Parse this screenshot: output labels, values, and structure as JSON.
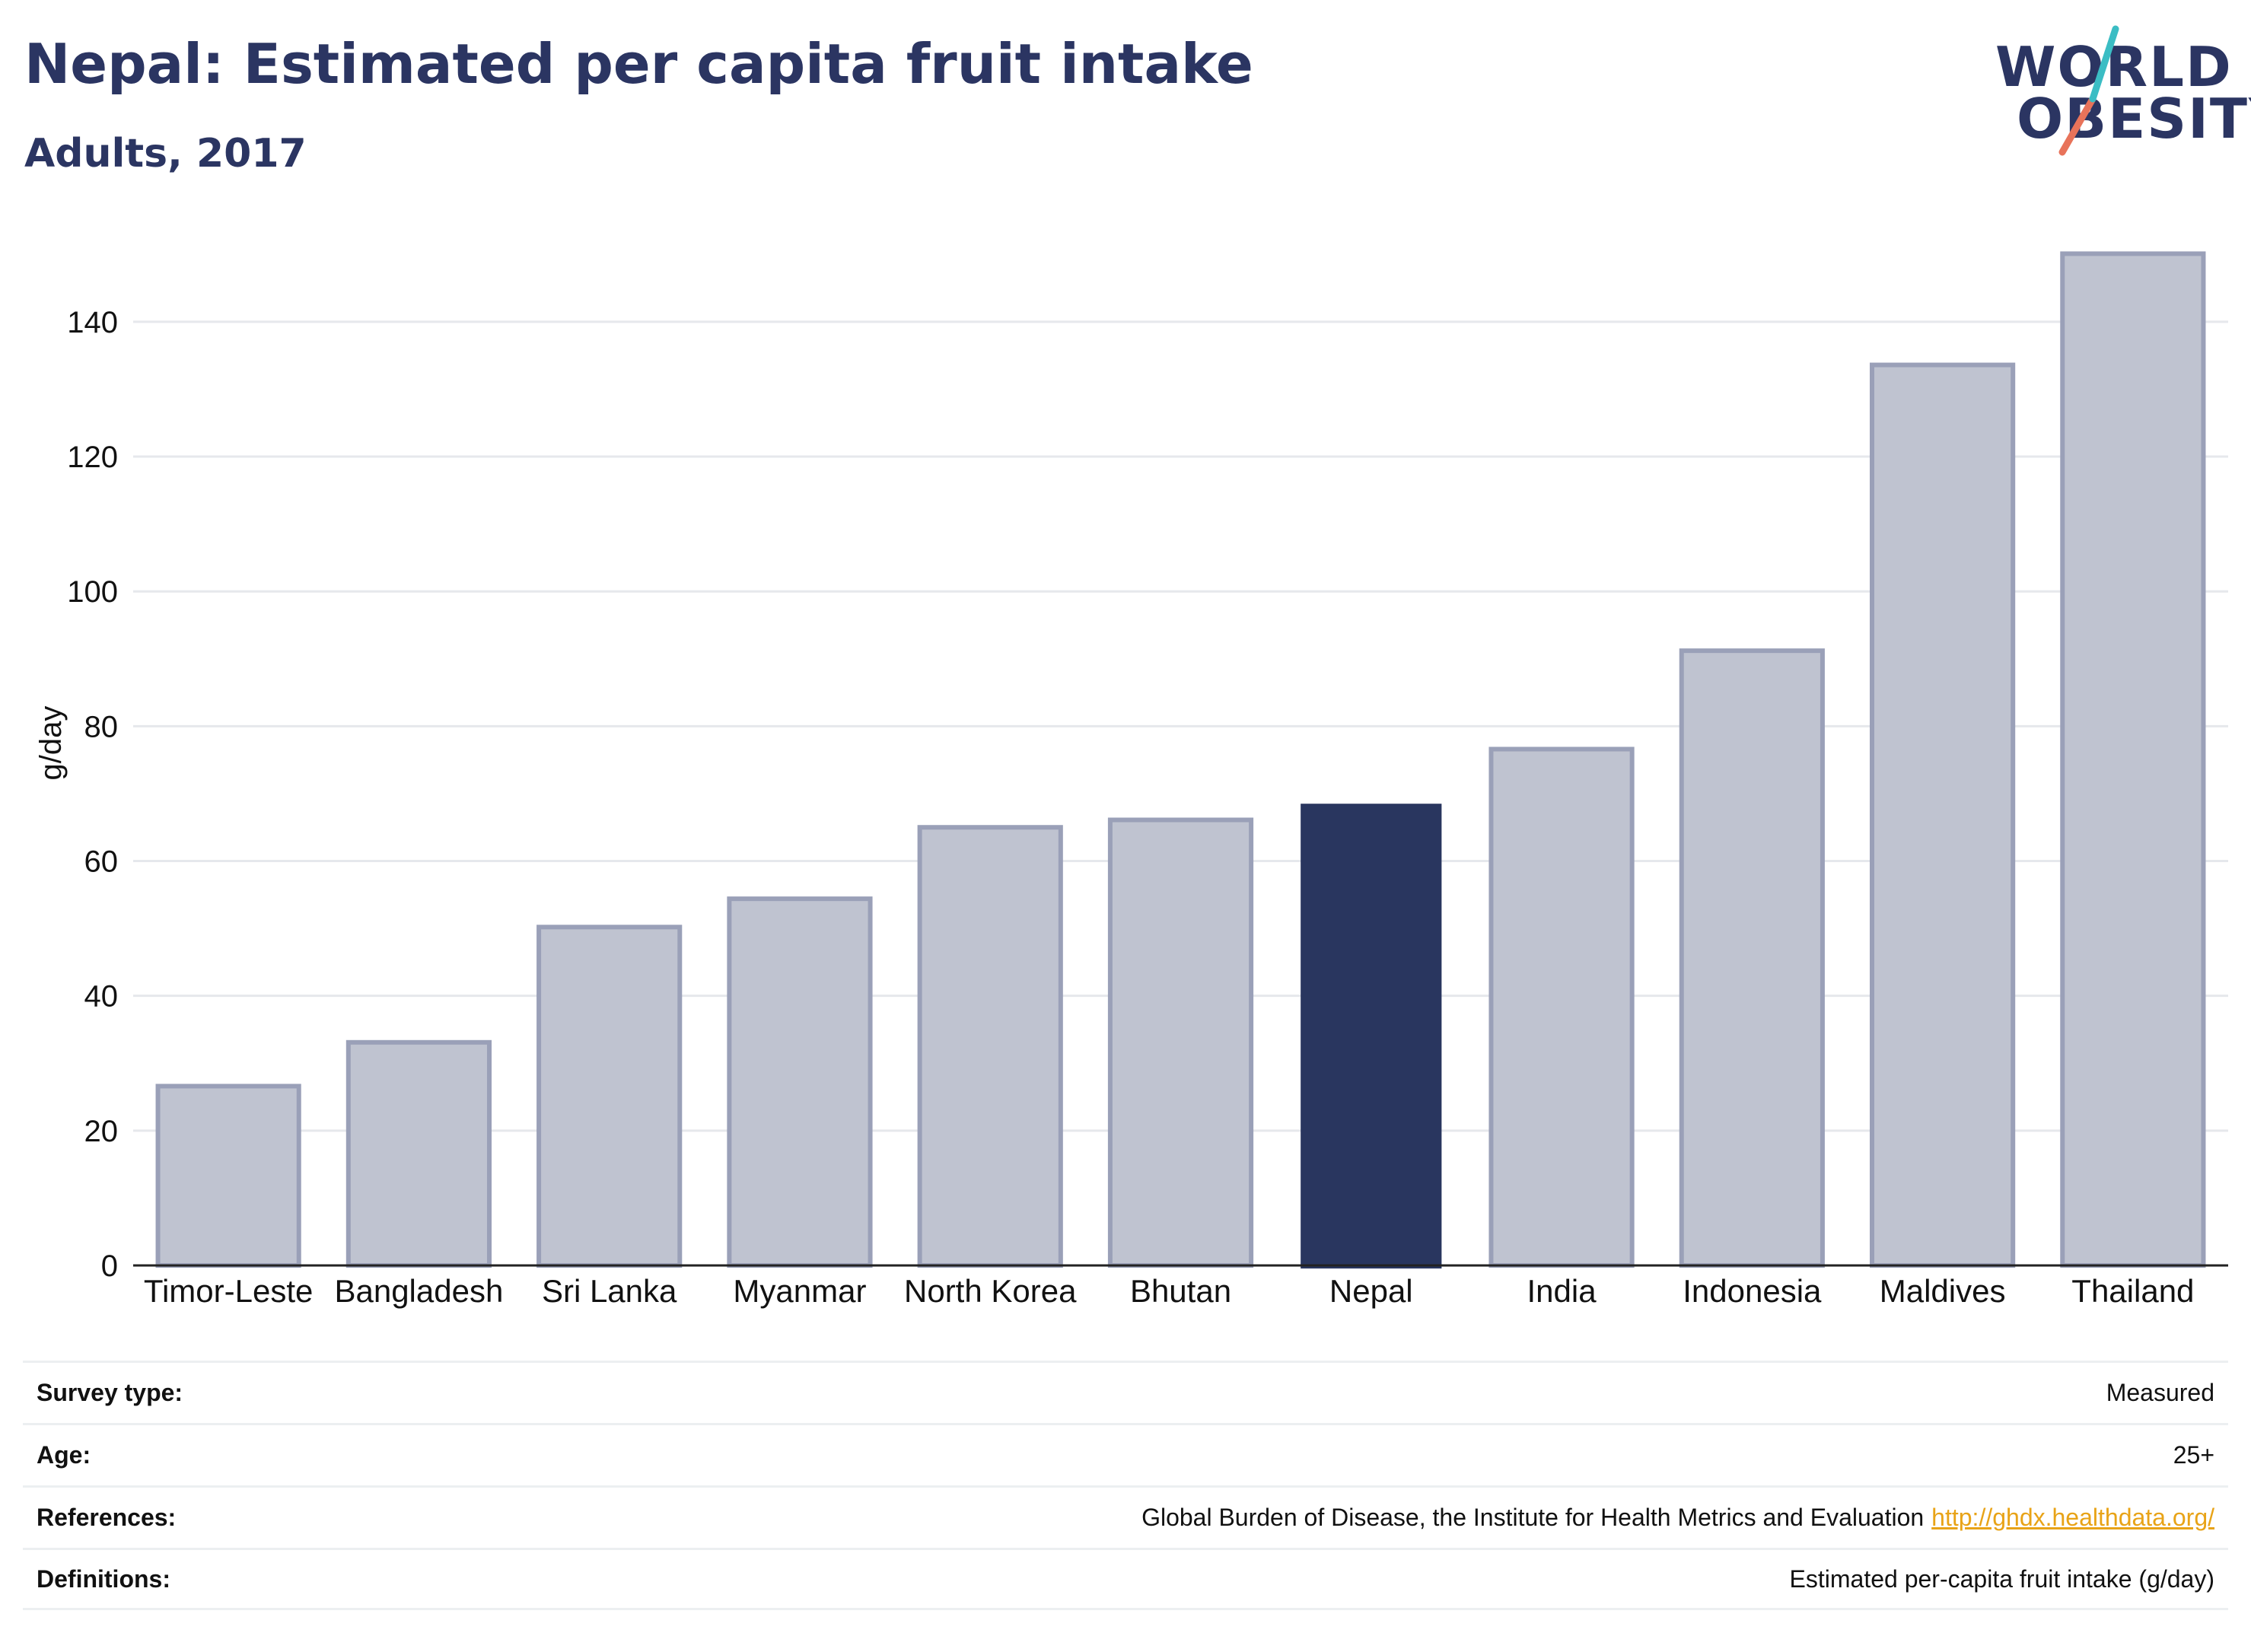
{
  "title": "Nepal: Estimated per capita fruit intake",
  "subtitle": "Adults, 2017",
  "logo": {
    "line1": "WORLD",
    "line2": "OBESITY"
  },
  "colors": {
    "highlight": "#29365f",
    "other": "#bfc3d0",
    "other_stroke": "#9aa0b8",
    "accent_teal": "#3bbdc4",
    "accent_coral": "#e8735a",
    "link": "#e8a317"
  },
  "chart_data": {
    "type": "bar",
    "ylabel": "g/day",
    "ylim": [
      0,
      155
    ],
    "yticks": [
      0,
      20,
      40,
      60,
      80,
      100,
      120,
      140
    ],
    "grid": true,
    "categories": [
      "Timor-Leste",
      "Bangladesh",
      "Sri Lanka",
      "Myanmar",
      "North Korea",
      "Bhutan",
      "Nepal",
      "India",
      "Indonesia",
      "Maldives",
      "Thailand"
    ],
    "values": [
      26.6,
      33.1,
      50.2,
      54.4,
      65.0,
      66.1,
      68.5,
      76.6,
      91.2,
      133.6,
      150.1
    ],
    "highlight": "Nepal"
  },
  "meta": [
    {
      "key": "Survey type:",
      "value": "Measured"
    },
    {
      "key": "Age:",
      "value": "25+"
    },
    {
      "key": "References:",
      "value": "Global Burden of Disease, the Institute for Health Metrics and Evaluation",
      "link": "http://ghdx.healthdata.org/"
    },
    {
      "key": "Definitions:",
      "value": "Estimated per-capita fruit intake (g/day)"
    }
  ]
}
